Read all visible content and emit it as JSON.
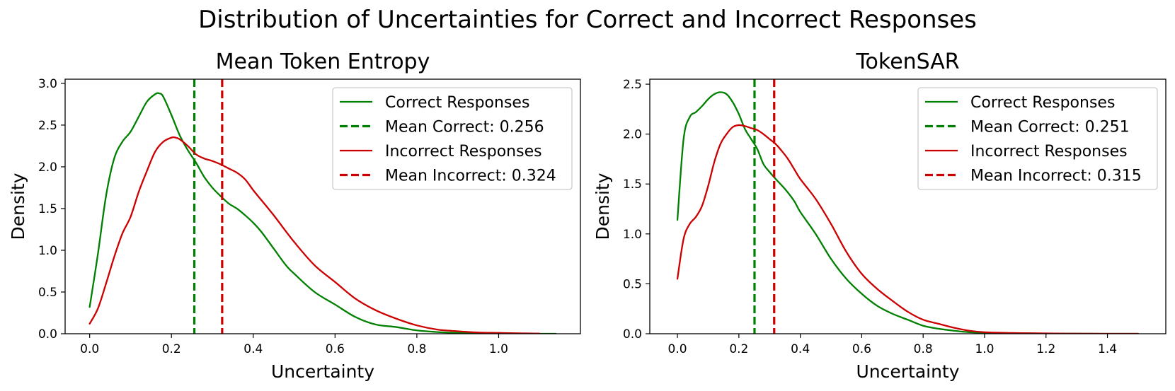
{
  "figure": {
    "suptitle": "Distribution of Uncertainties for Correct and Incorrect Responses"
  },
  "colors": {
    "correct": "#008000",
    "incorrect": "#cc0000",
    "axis": "#000000",
    "legend_border": "#cccccc"
  },
  "chart_data": [
    {
      "type": "line",
      "title": "Mean Token Entropy",
      "xlabel": "Uncertainty",
      "ylabel": "Density",
      "xlim": [
        -0.06,
        1.2
      ],
      "ylim": [
        0,
        3.05
      ],
      "xticks": [
        0.0,
        0.2,
        0.4,
        0.6,
        0.8,
        1.0
      ],
      "xtick_labels": [
        "0.0",
        "0.2",
        "0.4",
        "0.6",
        "0.8",
        "1.0"
      ],
      "yticks": [
        0.0,
        0.5,
        1.0,
        1.5,
        2.0,
        2.5,
        3.0
      ],
      "ytick_labels": [
        "0.0",
        "0.5",
        "1.0",
        "1.5",
        "2.0",
        "2.5",
        "3.0"
      ],
      "grid": false,
      "legend_position": "top-right",
      "series": [
        {
          "name": "Correct Responses",
          "style": "solid",
          "color_key": "correct",
          "x": [
            0.0,
            0.02,
            0.04,
            0.06,
            0.08,
            0.1,
            0.12,
            0.14,
            0.16,
            0.17,
            0.18,
            0.2,
            0.22,
            0.24,
            0.26,
            0.28,
            0.3,
            0.32,
            0.34,
            0.36,
            0.38,
            0.4,
            0.42,
            0.45,
            0.48,
            0.5,
            0.55,
            0.6,
            0.65,
            0.7,
            0.75,
            0.8,
            0.85,
            0.9,
            0.95,
            1.0,
            1.05,
            1.1,
            1.14
          ],
          "y": [
            0.32,
            0.95,
            1.65,
            2.1,
            2.3,
            2.42,
            2.6,
            2.78,
            2.87,
            2.88,
            2.84,
            2.62,
            2.38,
            2.2,
            2.05,
            1.88,
            1.75,
            1.65,
            1.56,
            1.5,
            1.42,
            1.33,
            1.22,
            1.02,
            0.82,
            0.72,
            0.5,
            0.35,
            0.2,
            0.11,
            0.08,
            0.04,
            0.02,
            0.01,
            0.005,
            0.003,
            0.001,
            0.0,
            0.0
          ]
        },
        {
          "name": "Mean Correct: 0.256",
          "style": "dashed",
          "color_key": "correct",
          "vline": 0.256
        },
        {
          "name": "Incorrect Responses",
          "style": "solid",
          "color_key": "incorrect",
          "x": [
            0.0,
            0.02,
            0.04,
            0.06,
            0.08,
            0.1,
            0.12,
            0.14,
            0.16,
            0.18,
            0.2,
            0.21,
            0.22,
            0.24,
            0.26,
            0.28,
            0.3,
            0.32,
            0.34,
            0.36,
            0.38,
            0.4,
            0.42,
            0.45,
            0.5,
            0.55,
            0.6,
            0.65,
            0.7,
            0.75,
            0.8,
            0.85,
            0.9,
            0.95,
            1.0,
            1.05,
            1.1
          ],
          "y": [
            0.12,
            0.3,
            0.6,
            0.92,
            1.2,
            1.4,
            1.7,
            1.95,
            2.18,
            2.3,
            2.35,
            2.35,
            2.33,
            2.25,
            2.15,
            2.1,
            2.07,
            2.03,
            1.98,
            1.93,
            1.85,
            1.72,
            1.6,
            1.42,
            1.1,
            0.82,
            0.62,
            0.42,
            0.28,
            0.18,
            0.1,
            0.05,
            0.03,
            0.015,
            0.01,
            0.005,
            0.002
          ]
        },
        {
          "name": "Mean Incorrect: 0.324",
          "style": "dashed",
          "color_key": "incorrect",
          "vline": 0.324
        }
      ]
    },
    {
      "type": "line",
      "title": "TokenSAR",
      "xlabel": "Uncertainty",
      "ylabel": "Density",
      "xlim": [
        -0.09,
        1.59
      ],
      "ylim": [
        0,
        2.55
      ],
      "xticks": [
        0.0,
        0.2,
        0.4,
        0.6,
        0.8,
        1.0,
        1.2,
        1.4
      ],
      "xtick_labels": [
        "0.0",
        "0.2",
        "0.4",
        "0.6",
        "0.8",
        "1.0",
        "1.2",
        "1.4"
      ],
      "yticks": [
        0.0,
        0.5,
        1.0,
        1.5,
        2.0,
        2.5
      ],
      "ytick_labels": [
        "0.0",
        "0.5",
        "1.0",
        "1.5",
        "2.0",
        "2.5"
      ],
      "grid": false,
      "legend_position": "top-right",
      "series": [
        {
          "name": "Correct Responses",
          "style": "solid",
          "color_key": "correct",
          "x": [
            0.0,
            0.02,
            0.04,
            0.06,
            0.08,
            0.1,
            0.12,
            0.14,
            0.16,
            0.18,
            0.2,
            0.22,
            0.24,
            0.26,
            0.28,
            0.3,
            0.32,
            0.35,
            0.38,
            0.4,
            0.45,
            0.5,
            0.55,
            0.6,
            0.65,
            0.7,
            0.75,
            0.8,
            0.85,
            0.9,
            0.95,
            1.0,
            1.1,
            1.2,
            1.3,
            1.4,
            1.5
          ],
          "y": [
            1.14,
            1.95,
            2.17,
            2.22,
            2.28,
            2.35,
            2.4,
            2.42,
            2.4,
            2.32,
            2.2,
            2.05,
            1.95,
            1.85,
            1.7,
            1.62,
            1.55,
            1.45,
            1.33,
            1.22,
            1.0,
            0.75,
            0.55,
            0.4,
            0.28,
            0.2,
            0.14,
            0.08,
            0.05,
            0.03,
            0.015,
            0.01,
            0.005,
            0.002,
            0.001,
            0.0,
            0.0
          ]
        },
        {
          "name": "Mean Correct: 0.251",
          "style": "dashed",
          "color_key": "correct",
          "vline": 0.251
        },
        {
          "name": "Incorrect Responses",
          "style": "solid",
          "color_key": "incorrect",
          "x": [
            0.0,
            0.02,
            0.04,
            0.06,
            0.08,
            0.1,
            0.12,
            0.14,
            0.16,
            0.18,
            0.2,
            0.22,
            0.24,
            0.26,
            0.28,
            0.3,
            0.32,
            0.34,
            0.36,
            0.38,
            0.4,
            0.45,
            0.5,
            0.55,
            0.6,
            0.65,
            0.7,
            0.75,
            0.8,
            0.85,
            0.9,
            0.95,
            1.0,
            1.1,
            1.2,
            1.3,
            1.4,
            1.5
          ],
          "y": [
            0.55,
            0.95,
            1.1,
            1.17,
            1.28,
            1.48,
            1.72,
            1.9,
            2.0,
            2.07,
            2.09,
            2.08,
            2.06,
            2.04,
            2.0,
            1.95,
            1.9,
            1.83,
            1.75,
            1.65,
            1.55,
            1.35,
            1.1,
            0.82,
            0.6,
            0.45,
            0.33,
            0.22,
            0.14,
            0.1,
            0.06,
            0.03,
            0.015,
            0.007,
            0.003,
            0.001,
            0.0,
            0.0
          ]
        },
        {
          "name": "Mean Incorrect: 0.315",
          "style": "dashed",
          "color_key": "incorrect",
          "vline": 0.315
        }
      ]
    }
  ]
}
